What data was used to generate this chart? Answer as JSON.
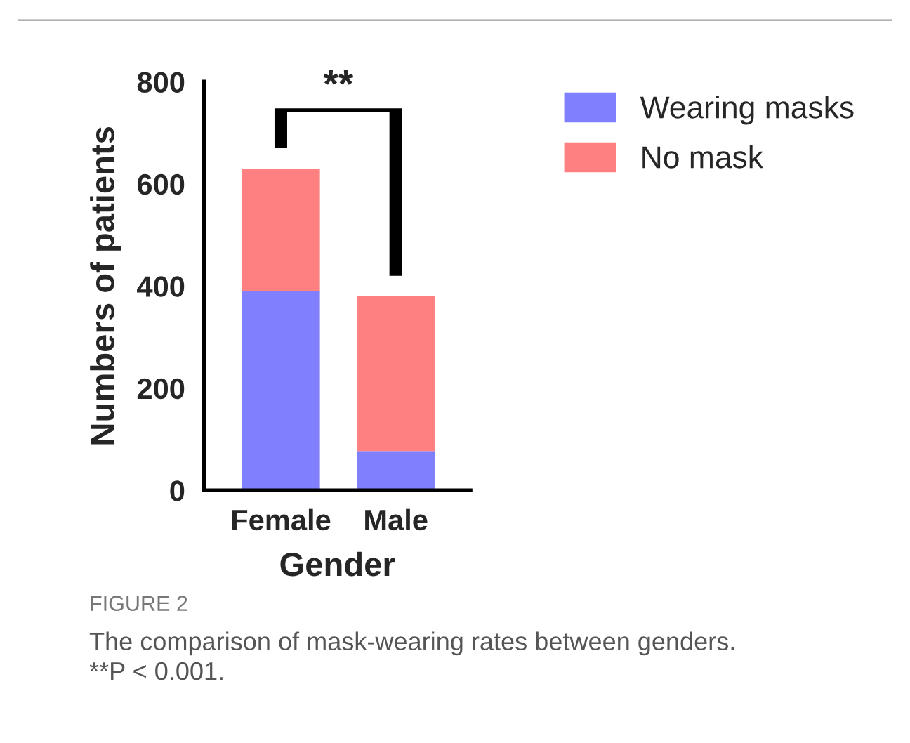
{
  "chart_data": {
    "type": "bar",
    "stacked": true,
    "xlabel": "Gender",
    "ylabel": "Numbers of patients",
    "categories": [
      "Female",
      "Male"
    ],
    "series": [
      {
        "name": "Wearing masks",
        "color": "#8080ff",
        "values": [
          390,
          77
        ]
      },
      {
        "name": "No mask",
        "color": "#ff8080",
        "values": [
          240,
          303
        ]
      }
    ],
    "ylim": [
      0,
      800
    ],
    "yticks": [
      0,
      200,
      400,
      600,
      800
    ],
    "grid": false,
    "legend": "top right",
    "annotations": [
      "**",
      "FIGURE 2",
      "The comparison of mask-wearing rates between genders.",
      "**P < 0.001."
    ]
  }
}
